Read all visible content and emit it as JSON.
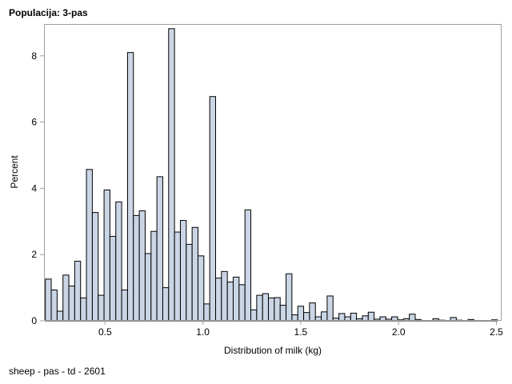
{
  "chart_data": {
    "type": "bar",
    "title": "Populacija: 3-pas",
    "footnote": "sheep - pas - td - 2601",
    "xlabel": "Distribution of milk (kg)",
    "ylabel": "Percent",
    "xlim": [
      0.195,
      2.52
    ],
    "ylim": [
      0,
      8.95
    ],
    "xticks": [
      0.5,
      1.0,
      1.5,
      2.0,
      2.5
    ],
    "xtick_labels": [
      "0.5",
      "1.0",
      "1.5",
      "2.0",
      "2.5"
    ],
    "yticks": [
      0,
      2,
      4,
      6,
      8
    ],
    "ytick_labels": [
      "0",
      "2",
      "4",
      "6",
      "8"
    ],
    "bin_start": 0.21,
    "bin_width": 0.03,
    "grid": false,
    "bar_fill": "#cad5e5",
    "bar_edge": "#000000",
    "values": [
      1.26,
      0.93,
      0.29,
      1.38,
      1.05,
      1.8,
      0.69,
      4.57,
      3.27,
      0.77,
      3.95,
      2.55,
      3.59,
      0.93,
      8.1,
      3.18,
      3.32,
      2.03,
      2.7,
      4.35,
      1.0,
      8.82,
      2.68,
      3.03,
      2.31,
      2.82,
      1.96,
      0.51,
      6.77,
      1.29,
      1.49,
      1.17,
      1.32,
      1.09,
      3.35,
      0.33,
      0.77,
      0.82,
      0.69,
      0.7,
      0.47,
      1.42,
      0.18,
      0.44,
      0.25,
      0.54,
      0.12,
      0.27,
      0.75,
      0.08,
      0.22,
      0.12,
      0.23,
      0.06,
      0.15,
      0.26,
      0.05,
      0.12,
      0.05,
      0.12,
      0.03,
      0.06,
      0.2,
      0.04,
      0.01,
      0.01,
      0.06,
      0.02,
      0.01,
      0.1,
      0.02,
      0.01,
      0.04,
      0.01,
      0.01,
      0.01,
      0.03
    ]
  }
}
